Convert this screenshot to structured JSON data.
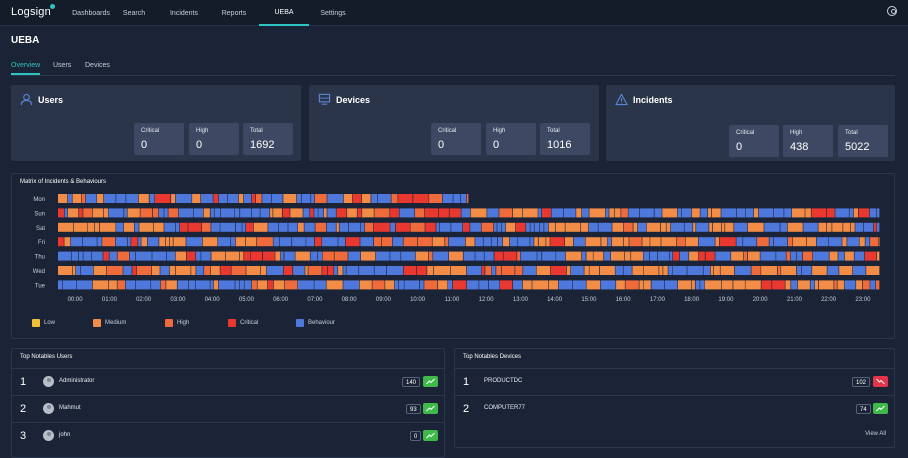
{
  "app": {
    "logo": "Logsign"
  },
  "nav": [
    "Dashboards",
    "Search",
    "Incidents",
    "Reports",
    "UEBA",
    "Settings"
  ],
  "page": {
    "title": "UEBA",
    "tabs": [
      "Overview",
      "Users",
      "Devices"
    ]
  },
  "cards": {
    "users": {
      "title": "Users",
      "critical_label": "Critical",
      "critical": "0",
      "high_label": "High",
      "high": "0",
      "total_label": "Total",
      "total": "1692"
    },
    "devices": {
      "title": "Devices",
      "critical_label": "Critical",
      "critical": "0",
      "high_label": "High",
      "high": "0",
      "total_label": "Total",
      "total": "1016"
    },
    "incidents": {
      "title": "Incidents",
      "critical_label": "Critical",
      "critical": "0",
      "high_label": "High",
      "high": "438",
      "total_label": "Total",
      "total": "5022"
    }
  },
  "matrix": {
    "title": "Matrix of Incidents & Behaviours",
    "days": [
      "Mon",
      "Sun",
      "Sat",
      "Fri",
      "Thu",
      "Wed",
      "Tue"
    ],
    "hours": [
      "00:00",
      "01:00",
      "02:00",
      "03:00",
      "04:00",
      "05:00",
      "06:00",
      "07:00",
      "08:00",
      "09:00",
      "10:00",
      "11:00",
      "12:00",
      "13:00",
      "14:00",
      "15:00",
      "16:00",
      "17:00",
      "18:00",
      "19:00",
      "20:00",
      "21:00",
      "22:00",
      "23:00"
    ],
    "mon_hours_covered": 12,
    "legend": {
      "low": "Low",
      "medium": "Medium",
      "high": "High",
      "critical": "Critical",
      "behaviour": "Behaviour"
    },
    "colors": {
      "low": "#f2c037",
      "medium": "#f28c46",
      "high": "#f06b3c",
      "critical": "#e8382f",
      "behaviour": "#4f78dd"
    }
  },
  "top_users": {
    "title": "Top Notables Users",
    "items": [
      {
        "rank": "1",
        "name": "Administrator",
        "count": "140",
        "trend": "up"
      },
      {
        "rank": "2",
        "name": "Mahmut",
        "count": "93",
        "trend": "up"
      },
      {
        "rank": "3",
        "name": "john",
        "count": "0",
        "trend": "up"
      }
    ]
  },
  "top_devices": {
    "title": "Top Notables Devices",
    "items": [
      {
        "rank": "1",
        "name": "PRODUCTDC",
        "count": "102",
        "trend": "down"
      },
      {
        "rank": "2",
        "name": "COMPUTER77",
        "count": "74",
        "trend": "up"
      }
    ],
    "view_all": "View All"
  }
}
